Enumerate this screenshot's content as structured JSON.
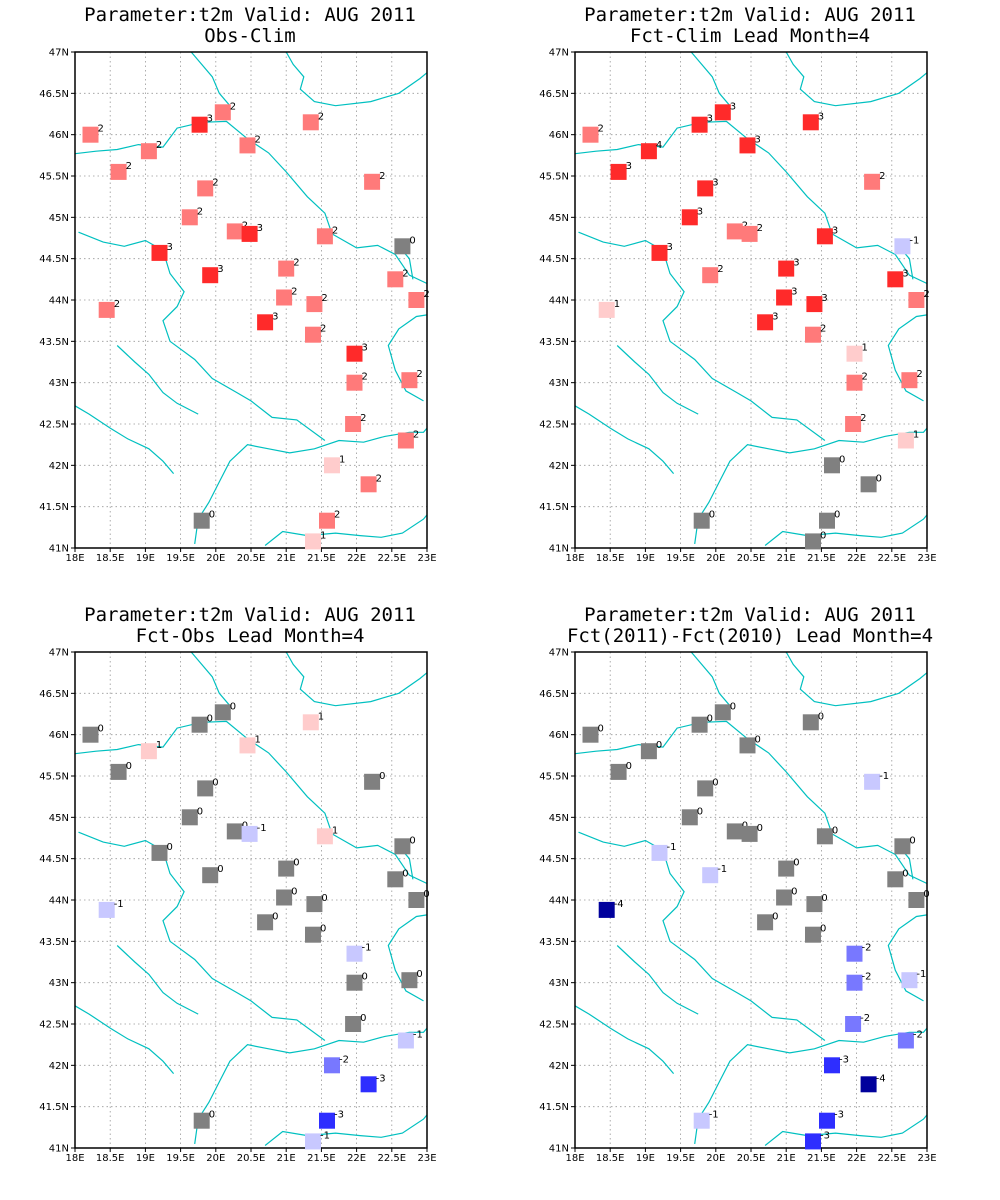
{
  "page": {
    "panels": [
      {
        "title": "Parameter:t2m Valid: AUG 2011",
        "subtitle": "Obs-Clim"
      },
      {
        "title": "Parameter:t2m Valid: AUG 2011",
        "subtitle": "Fct-Clim Lead Month=4"
      },
      {
        "title": "Parameter:t2m Valid: AUG 2011",
        "subtitle": "Fct-Obs Lead Month=4"
      },
      {
        "title": "Parameter:t2m Valid: AUG 2011",
        "subtitle": "Fct(2011)-Fct(2010) Lead Month=4"
      }
    ]
  },
  "chart_data": {
    "type": "map-station-anomaly",
    "xlim": [
      18,
      23
    ],
    "ylim": [
      41,
      47
    ],
    "x_ticks": [
      "18E",
      "18.5E",
      "19E",
      "19.5E",
      "20E",
      "20.5E",
      "21E",
      "21.5E",
      "22E",
      "22.5E",
      "23E"
    ],
    "y_ticks": [
      "41N",
      "41.5N",
      "42N",
      "42.5N",
      "43N",
      "43.5N",
      "44N",
      "44.5N",
      "45N",
      "45.5N",
      "46N",
      "46.5N",
      "47N"
    ],
    "grid": true,
    "colors": {
      "zero": "#808080",
      "pos1": "#ffcccc",
      "pos2": "#ff7a7a",
      "pos3": "#ff2a2a",
      "neg1": "#c8c8ff",
      "neg2": "#7878ff",
      "neg3": "#2e2eff",
      "neg4": "#00009c",
      "border": "#00c0c0"
    },
    "stations": [
      {
        "lon": 18.22,
        "lat": 46.0
      },
      {
        "lon": 18.62,
        "lat": 45.55
      },
      {
        "lon": 19.05,
        "lat": 45.8
      },
      {
        "lon": 19.77,
        "lat": 46.12
      },
      {
        "lon": 20.1,
        "lat": 46.27
      },
      {
        "lon": 20.45,
        "lat": 45.87
      },
      {
        "lon": 21.35,
        "lat": 46.15
      },
      {
        "lon": 22.22,
        "lat": 45.43
      },
      {
        "lon": 19.85,
        "lat": 45.35
      },
      {
        "lon": 19.63,
        "lat": 45.0
      },
      {
        "lon": 20.27,
        "lat": 44.83
      },
      {
        "lon": 20.48,
        "lat": 44.8
      },
      {
        "lon": 21.55,
        "lat": 44.77
      },
      {
        "lon": 22.65,
        "lat": 44.65
      },
      {
        "lon": 19.2,
        "lat": 44.57
      },
      {
        "lon": 19.92,
        "lat": 44.3
      },
      {
        "lon": 21.0,
        "lat": 44.38
      },
      {
        "lon": 20.97,
        "lat": 44.03
      },
      {
        "lon": 21.4,
        "lat": 43.95
      },
      {
        "lon": 22.55,
        "lat": 44.25
      },
      {
        "lon": 22.85,
        "lat": 44.0
      },
      {
        "lon": 18.45,
        "lat": 43.88
      },
      {
        "lon": 20.7,
        "lat": 43.73
      },
      {
        "lon": 21.38,
        "lat": 43.58
      },
      {
        "lon": 21.97,
        "lat": 43.35
      },
      {
        "lon": 21.97,
        "lat": 43.0
      },
      {
        "lon": 22.75,
        "lat": 43.03
      },
      {
        "lon": 21.95,
        "lat": 42.5
      },
      {
        "lon": 22.7,
        "lat": 42.3
      },
      {
        "lon": 21.65,
        "lat": 42.0
      },
      {
        "lon": 22.17,
        "lat": 41.77
      },
      {
        "lon": 19.8,
        "lat": 41.33
      },
      {
        "lon": 21.58,
        "lat": 41.33
      },
      {
        "lon": 21.38,
        "lat": 41.08
      }
    ],
    "series": [
      {
        "name": "Obs-Clim",
        "values": [
          2,
          2,
          2,
          3,
          2,
          2,
          2,
          2,
          2,
          2,
          2,
          3,
          2,
          0,
          3,
          3,
          2,
          2,
          2,
          2,
          2,
          2,
          3,
          2,
          3,
          2,
          2,
          2,
          2,
          1,
          2,
          0,
          2,
          1
        ]
      },
      {
        "name": "Fct-Clim Lead Month=4",
        "values": [
          2,
          3,
          4,
          3,
          3,
          3,
          3,
          2,
          3,
          3,
          2,
          2,
          3,
          -1,
          3,
          2,
          3,
          3,
          3,
          3,
          2,
          1,
          3,
          2,
          1,
          2,
          2,
          2,
          1,
          0,
          0,
          0,
          0,
          0
        ]
      },
      {
        "name": "Fct-Obs Lead Month=4",
        "values": [
          0,
          0,
          1,
          0,
          0,
          1,
          1,
          0,
          0,
          0,
          0,
          -1,
          1,
          0,
          0,
          0,
          0,
          0,
          0,
          0,
          0,
          -1,
          0,
          0,
          -1,
          0,
          0,
          0,
          -1,
          -2,
          -3,
          0,
          -3,
          -1
        ]
      },
      {
        "name": "Fct(2011)-Fct(2010) Lead Month=4",
        "values": [
          0,
          0,
          0,
          0,
          0,
          0,
          0,
          -1,
          0,
          0,
          0,
          0,
          0,
          0,
          -1,
          -1,
          0,
          0,
          0,
          0,
          0,
          -4,
          0,
          0,
          -2,
          -2,
          -1,
          -2,
          -2,
          -3,
          -4,
          -1,
          -3,
          -3
        ]
      }
    ]
  }
}
